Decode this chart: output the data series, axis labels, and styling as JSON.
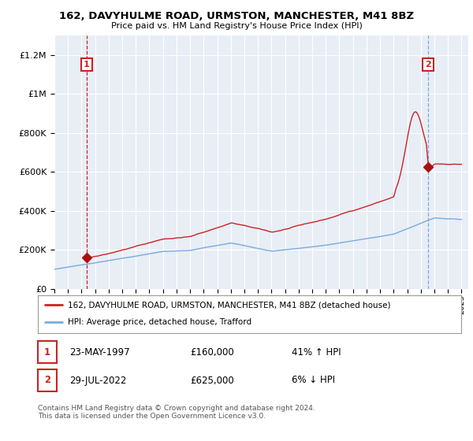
{
  "title": "162, DAVYHULME ROAD, URMSTON, MANCHESTER, M41 8BZ",
  "subtitle": "Price paid vs. HM Land Registry's House Price Index (HPI)",
  "legend_line1": "162, DAVYHULME ROAD, URMSTON, MANCHESTER, M41 8BZ (detached house)",
  "legend_line2": "HPI: Average price, detached house, Trafford",
  "point1_date": "23-MAY-1997",
  "point1_price": "£160,000",
  "point1_hpi": "41% ↑ HPI",
  "point2_date": "29-JUL-2022",
  "point2_price": "£625,000",
  "point2_hpi": "6% ↓ HPI",
  "footer": "Contains HM Land Registry data © Crown copyright and database right 2024.\nThis data is licensed under the Open Government Licence v3.0.",
  "price_color": "#cc2222",
  "hpi_color": "#7aaadd",
  "vline1_color": "#cc2222",
  "vline2_color": "#7aaadd",
  "point_marker_color": "#aa1111",
  "background_color": "#ffffff",
  "plot_bg_color": "#e8eef6",
  "grid_color": "#ffffff",
  "ylim": [
    0,
    1300000
  ],
  "yticks": [
    0,
    200000,
    400000,
    600000,
    800000,
    1000000,
    1200000
  ],
  "ytick_labels": [
    "£0",
    "£200K",
    "£400K",
    "£600K",
    "£800K",
    "£1M",
    "£1.2M"
  ],
  "sale1_year": 1997.375,
  "sale1_price": 160000,
  "sale2_year": 2022.54,
  "sale2_price": 625000
}
